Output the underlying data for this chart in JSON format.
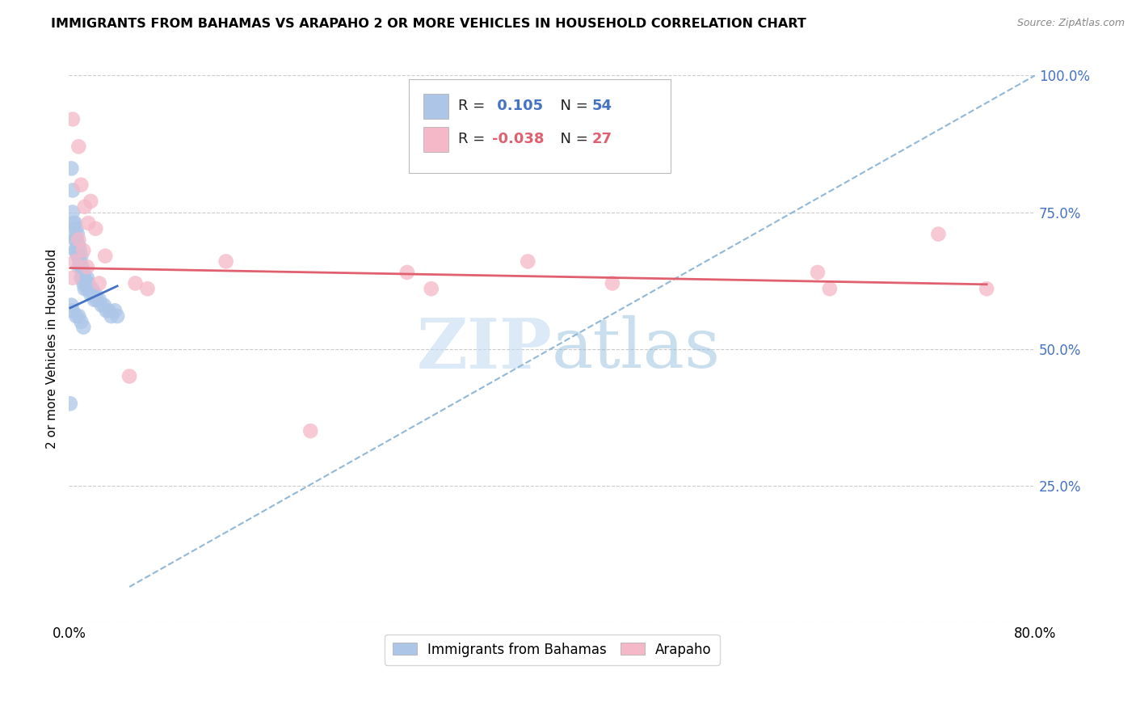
{
  "title": "IMMIGRANTS FROM BAHAMAS VS ARAPAHO 2 OR MORE VEHICLES IN HOUSEHOLD CORRELATION CHART",
  "source": "Source: ZipAtlas.com",
  "ylabel": "2 or more Vehicles in Household",
  "x_min": 0.0,
  "x_max": 0.8,
  "y_min": 0.0,
  "y_max": 1.0,
  "x_ticks": [
    0.0,
    0.1,
    0.2,
    0.3,
    0.4,
    0.5,
    0.6,
    0.7,
    0.8
  ],
  "x_tick_labels": [
    "0.0%",
    "",
    "",
    "",
    "",
    "",
    "",
    "",
    "80.0%"
  ],
  "y_ticks": [
    0.0,
    0.25,
    0.5,
    0.75,
    1.0
  ],
  "y_tick_labels": [
    "",
    "25.0%",
    "50.0%",
    "75.0%",
    "100.0%"
  ],
  "legend_label1": "Immigrants from Bahamas",
  "legend_label2": "Arapaho",
  "R1": 0.105,
  "N1": 54,
  "R2": -0.038,
  "N2": 27,
  "blue_color": "#adc6e8",
  "pink_color": "#f5b8c8",
  "blue_line_color": "#4472c4",
  "pink_line_color": "#e06070",
  "dashed_line_color": "#90b8d8",
  "blue_scatter_x": [
    0.001,
    0.002,
    0.003,
    0.003,
    0.004,
    0.004,
    0.005,
    0.005,
    0.005,
    0.006,
    0.006,
    0.006,
    0.007,
    0.007,
    0.007,
    0.008,
    0.008,
    0.008,
    0.009,
    0.009,
    0.01,
    0.01,
    0.01,
    0.011,
    0.011,
    0.012,
    0.012,
    0.013,
    0.013,
    0.014,
    0.015,
    0.015,
    0.016,
    0.017,
    0.018,
    0.019,
    0.02,
    0.021,
    0.022,
    0.023,
    0.025,
    0.027,
    0.029,
    0.031,
    0.033,
    0.035,
    0.038,
    0.04,
    0.002,
    0.003,
    0.006,
    0.008,
    0.01,
    0.012
  ],
  "blue_scatter_y": [
    0.4,
    0.83,
    0.79,
    0.75,
    0.73,
    0.71,
    0.73,
    0.7,
    0.68,
    0.72,
    0.7,
    0.68,
    0.71,
    0.69,
    0.67,
    0.69,
    0.67,
    0.65,
    0.68,
    0.66,
    0.67,
    0.65,
    0.63,
    0.65,
    0.63,
    0.64,
    0.62,
    0.63,
    0.61,
    0.62,
    0.63,
    0.61,
    0.62,
    0.61,
    0.6,
    0.61,
    0.6,
    0.59,
    0.6,
    0.59,
    0.59,
    0.58,
    0.58,
    0.57,
    0.57,
    0.56,
    0.57,
    0.56,
    0.58,
    0.57,
    0.56,
    0.56,
    0.55,
    0.54
  ],
  "pink_scatter_x": [
    0.003,
    0.008,
    0.01,
    0.013,
    0.016,
    0.018,
    0.022,
    0.03,
    0.13,
    0.2,
    0.28,
    0.38,
    0.45,
    0.62,
    0.72,
    0.76,
    0.003,
    0.005,
    0.008,
    0.012,
    0.015,
    0.025,
    0.055,
    0.065,
    0.3,
    0.63,
    0.05
  ],
  "pink_scatter_y": [
    0.92,
    0.87,
    0.8,
    0.76,
    0.73,
    0.77,
    0.72,
    0.67,
    0.66,
    0.35,
    0.64,
    0.66,
    0.62,
    0.64,
    0.71,
    0.61,
    0.63,
    0.66,
    0.7,
    0.68,
    0.65,
    0.62,
    0.62,
    0.61,
    0.61,
    0.61,
    0.45
  ],
  "blue_line_x": [
    0.001,
    0.04
  ],
  "blue_line_y": [
    0.575,
    0.615
  ],
  "pink_line_x": [
    0.001,
    0.76
  ],
  "pink_line_y": [
    0.648,
    0.618
  ],
  "dashed_line_x": [
    0.05,
    0.8
  ],
  "dashed_line_y": [
    0.065,
    1.0
  ],
  "watermark_part1": "ZIP",
  "watermark_part2": "atlas",
  "background_color": "#ffffff",
  "title_fontsize": 11.5,
  "axis_tick_color_right": "#4472c4",
  "grid_color": "#cccccc"
}
